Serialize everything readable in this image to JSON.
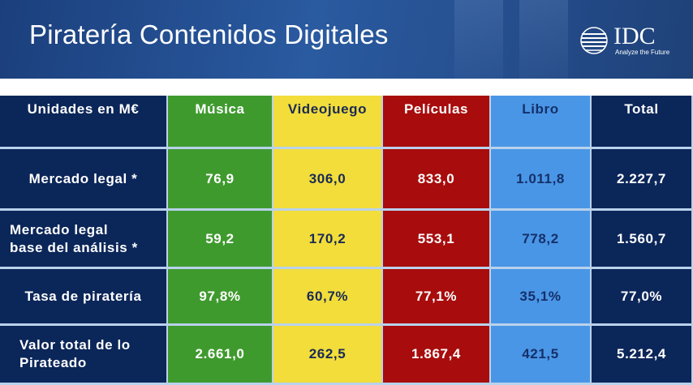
{
  "header": {
    "title": "Piratería Contenidos Digitales",
    "logo_text": "IDC",
    "logo_tagline": "Analyze the Future"
  },
  "table": {
    "corner_label": "Unidades en M€",
    "columns": [
      "Música",
      "Videojuego",
      "Películas",
      "Libro",
      "Total"
    ],
    "rows": [
      {
        "label": "Mercado legal *",
        "values": [
          "76,9",
          "306,0",
          "833,0",
          "1.011,8",
          "2.227,7"
        ]
      },
      {
        "label": "Mercado legal\nbase del análisis *",
        "values": [
          "59,2",
          "170,2",
          "553,1",
          "778,2",
          "1.560,7"
        ]
      },
      {
        "label": "Tasa de piratería",
        "values": [
          "97,8%",
          "60,7%",
          "77,1%",
          "35,1%",
          "77,0%"
        ]
      },
      {
        "label": "Valor total de lo\nPirateado",
        "values": [
          "2.661,0",
          "262,5",
          "1.867,4",
          "421,5",
          "5.212,4"
        ]
      }
    ]
  },
  "colors": {
    "header_blue": "#264f8f",
    "navy": "#0b2659",
    "music_green": "#3f9a2e",
    "game_yellow": "#f2dd3a",
    "film_red": "#a80c0c",
    "book_blue": "#4a96e6"
  }
}
